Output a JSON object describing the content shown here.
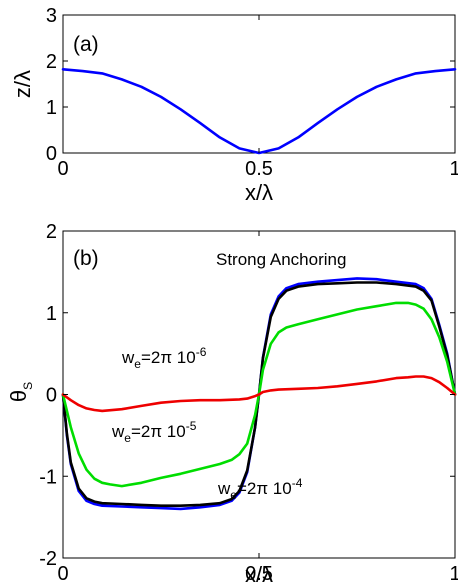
{
  "chart_data": [
    {
      "type": "line",
      "panel_label": "(a)",
      "xlabel": "x/λ",
      "ylabel": "z/λ",
      "xlim": [
        0,
        1
      ],
      "ylim": [
        0,
        3
      ],
      "xticks": [
        "0",
        "0.5",
        "1"
      ],
      "yticks": [
        "0",
        "1",
        "2",
        "3"
      ],
      "grid": false,
      "series": [
        {
          "color": "#0000ff",
          "x": [
            0,
            0.05,
            0.1,
            0.15,
            0.2,
            0.25,
            0.3,
            0.35,
            0.4,
            0.45,
            0.5,
            0.55,
            0.6,
            0.65,
            0.7,
            0.75,
            0.8,
            0.85,
            0.9,
            0.95,
            1.0
          ],
          "y": [
            1.82,
            1.78,
            1.73,
            1.6,
            1.44,
            1.22,
            0.95,
            0.65,
            0.34,
            0.1,
            0.0,
            0.1,
            0.34,
            0.65,
            0.95,
            1.22,
            1.44,
            1.6,
            1.73,
            1.78,
            1.82
          ]
        }
      ]
    },
    {
      "type": "line",
      "panel_label": "(b)",
      "xlabel": "x/λ",
      "ylabel": "θ",
      "ylabel_sub": "S",
      "xlim": [
        0,
        1
      ],
      "ylim": [
        -2,
        2
      ],
      "xticks": [
        "0",
        "0.5",
        "1"
      ],
      "yticks": [
        "-2",
        "-1",
        "0",
        "1",
        "2"
      ],
      "grid": false,
      "annotations": [
        {
          "text": "Strong Anchoring"
        },
        {
          "text": "w",
          "sub": "e",
          "rest": "=2π 10",
          "sup": "-6"
        },
        {
          "text": "w",
          "sub": "e",
          "rest": "=2π 10",
          "sup": "-5"
        },
        {
          "text": "w",
          "sub": "e",
          "rest": "=2π 10",
          "sup": "-4"
        }
      ],
      "series": [
        {
          "color": "#0000ff",
          "x": [
            0,
            0.01,
            0.02,
            0.04,
            0.06,
            0.08,
            0.1,
            0.15,
            0.2,
            0.25,
            0.3,
            0.35,
            0.4,
            0.43,
            0.45,
            0.47,
            0.49,
            0.5,
            0.51,
            0.53,
            0.55,
            0.57,
            0.6,
            0.65,
            0.7,
            0.75,
            0.8,
            0.85,
            0.9,
            0.92,
            0.94,
            0.96,
            0.98,
            0.99,
            1.0
          ],
          "y": [
            0,
            -0.5,
            -0.85,
            -1.18,
            -1.3,
            -1.34,
            -1.36,
            -1.37,
            -1.38,
            -1.39,
            -1.4,
            -1.38,
            -1.35,
            -1.3,
            -1.2,
            -0.95,
            -0.4,
            0,
            0.45,
            0.98,
            1.2,
            1.3,
            1.35,
            1.38,
            1.4,
            1.42,
            1.41,
            1.38,
            1.35,
            1.3,
            1.17,
            0.85,
            0.5,
            0.25,
            0
          ]
        },
        {
          "color": "#000000",
          "x": [
            0,
            0.01,
            0.02,
            0.04,
            0.06,
            0.08,
            0.1,
            0.15,
            0.2,
            0.25,
            0.3,
            0.35,
            0.4,
            0.43,
            0.45,
            0.47,
            0.49,
            0.5,
            0.51,
            0.53,
            0.55,
            0.57,
            0.6,
            0.65,
            0.7,
            0.75,
            0.8,
            0.85,
            0.9,
            0.92,
            0.94,
            0.96,
            0.98,
            0.99,
            1.0
          ],
          "y": [
            0,
            -0.48,
            -0.83,
            -1.15,
            -1.27,
            -1.31,
            -1.33,
            -1.34,
            -1.35,
            -1.36,
            -1.36,
            -1.35,
            -1.33,
            -1.28,
            -1.18,
            -0.93,
            -0.4,
            0,
            0.44,
            0.95,
            1.17,
            1.27,
            1.32,
            1.35,
            1.36,
            1.37,
            1.37,
            1.35,
            1.32,
            1.27,
            1.15,
            0.83,
            0.48,
            0.24,
            0
          ]
        },
        {
          "color": "#00dd00",
          "x": [
            0,
            0.02,
            0.04,
            0.06,
            0.08,
            0.1,
            0.12,
            0.15,
            0.2,
            0.25,
            0.3,
            0.35,
            0.4,
            0.43,
            0.45,
            0.47,
            0.49,
            0.5,
            0.51,
            0.53,
            0.55,
            0.57,
            0.6,
            0.65,
            0.7,
            0.75,
            0.8,
            0.85,
            0.88,
            0.9,
            0.92,
            0.94,
            0.96,
            0.98,
            1.0
          ],
          "y": [
            0,
            -0.4,
            -0.72,
            -0.92,
            -1.03,
            -1.08,
            -1.1,
            -1.12,
            -1.08,
            -1.02,
            -0.97,
            -0.91,
            -0.85,
            -0.8,
            -0.73,
            -0.6,
            -0.25,
            0,
            0.3,
            0.62,
            0.76,
            0.82,
            0.86,
            0.92,
            0.98,
            1.04,
            1.08,
            1.12,
            1.12,
            1.1,
            1.05,
            0.92,
            0.7,
            0.4,
            0
          ]
        },
        {
          "color": "#ee0000",
          "x": [
            0,
            0.02,
            0.04,
            0.06,
            0.08,
            0.1,
            0.15,
            0.2,
            0.25,
            0.3,
            0.35,
            0.4,
            0.45,
            0.47,
            0.49,
            0.5,
            0.51,
            0.53,
            0.55,
            0.6,
            0.65,
            0.7,
            0.75,
            0.8,
            0.85,
            0.88,
            0.9,
            0.92,
            0.94,
            0.96,
            0.98,
            1.0
          ],
          "y": [
            0,
            -0.07,
            -0.13,
            -0.17,
            -0.19,
            -0.2,
            -0.18,
            -0.14,
            -0.1,
            -0.08,
            -0.07,
            -0.07,
            -0.06,
            -0.05,
            -0.02,
            0,
            0.03,
            0.05,
            0.06,
            0.07,
            0.08,
            0.1,
            0.13,
            0.16,
            0.2,
            0.21,
            0.22,
            0.22,
            0.2,
            0.15,
            0.08,
            0
          ]
        }
      ]
    }
  ]
}
